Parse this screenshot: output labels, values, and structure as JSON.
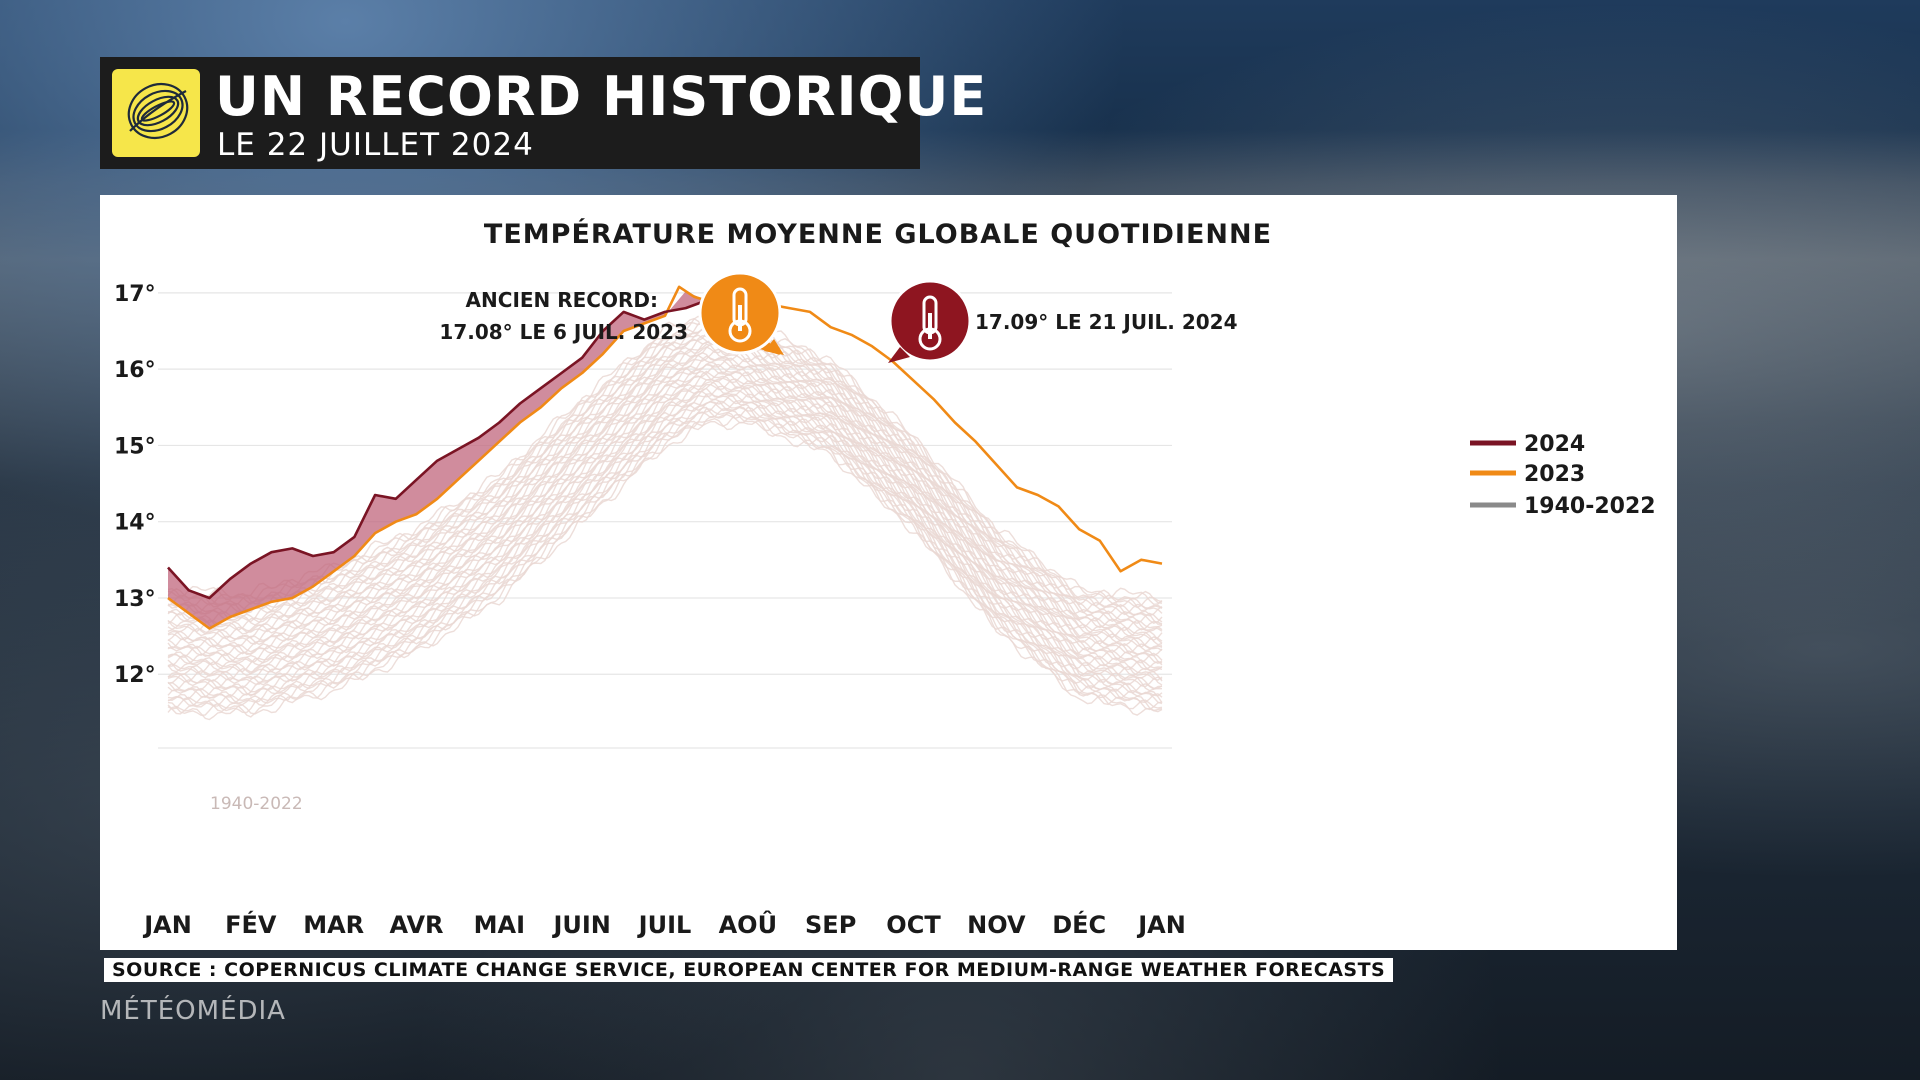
{
  "header": {
    "title": "UN RECORD HISTORIQUE",
    "subtitle": "LE 22 JUILLET 2024"
  },
  "colors": {
    "series_2024": "#7a1424",
    "series_2023": "#f08a16",
    "series_hist": "#ead8d4",
    "fill_2024": "#c0667c",
    "panel_bg": "#ffffff"
  },
  "icons": {
    "logo": "globe-swirl-icon",
    "old_record": "thermometer-icon",
    "new_record": "thermometer-icon"
  },
  "chart_data": {
    "type": "line",
    "title": "TEMPÉRATURE MOYENNE GLOBALE QUOTIDIENNE",
    "xlabel": "",
    "ylabel": "",
    "x_ticks": [
      "JAN",
      "FÉV",
      "MAR",
      "AVR",
      "MAI",
      "JUIN",
      "JUIL",
      "AOÛ",
      "SEP",
      "OCT",
      "NOV",
      "DÉC",
      "JAN"
    ],
    "y_ticks": [
      "12°",
      "13°",
      "14°",
      "15°",
      "16°",
      "17°"
    ],
    "y_tick_values": [
      12,
      13,
      14,
      15,
      16,
      17
    ],
    "ylim": [
      11.4,
      17.3
    ],
    "xlim_months": [
      0,
      12
    ],
    "grid": true,
    "legend_position": "right",
    "legend": [
      "2024",
      "2023",
      "1940-2022"
    ],
    "hist_label": "1940-2022",
    "series": [
      {
        "name": "2024",
        "x_months": [
          0,
          0.25,
          0.5,
          0.75,
          1,
          1.25,
          1.5,
          1.75,
          2,
          2.25,
          2.5,
          2.75,
          3,
          3.25,
          3.5,
          3.75,
          4,
          4.25,
          4.5,
          4.75,
          5,
          5.25,
          5.5,
          5.75,
          6,
          6.25,
          6.5,
          6.7
        ],
        "values": [
          13.4,
          13.1,
          13.0,
          13.25,
          13.45,
          13.6,
          13.65,
          13.55,
          13.6,
          13.8,
          14.35,
          14.3,
          14.55,
          14.8,
          14.95,
          15.1,
          15.3,
          15.55,
          15.75,
          15.95,
          16.15,
          16.5,
          16.75,
          16.65,
          16.75,
          16.8,
          16.9,
          17.09
        ]
      },
      {
        "name": "2023",
        "x_months": [
          0,
          0.25,
          0.5,
          0.75,
          1,
          1.25,
          1.5,
          1.75,
          2,
          2.25,
          2.5,
          2.75,
          3,
          3.25,
          3.5,
          3.75,
          4,
          4.25,
          4.5,
          4.75,
          5,
          5.25,
          5.5,
          5.75,
          6,
          6.17,
          6.35,
          6.5,
          6.75,
          7,
          7.25,
          7.5,
          7.75,
          8,
          8.25,
          8.5,
          8.75,
          9,
          9.25,
          9.5,
          9.75,
          10,
          10.25,
          10.5,
          10.75,
          11,
          11.25,
          11.5,
          11.75,
          12
        ],
        "values": [
          13.0,
          12.8,
          12.6,
          12.75,
          12.85,
          12.95,
          13.0,
          13.15,
          13.35,
          13.55,
          13.85,
          14.0,
          14.1,
          14.3,
          14.55,
          14.8,
          15.05,
          15.3,
          15.5,
          15.75,
          15.95,
          16.2,
          16.5,
          16.6,
          16.7,
          17.08,
          16.95,
          16.9,
          17.0,
          16.95,
          16.85,
          16.8,
          16.75,
          16.55,
          16.45,
          16.3,
          16.1,
          15.85,
          15.6,
          15.3,
          15.05,
          14.75,
          14.45,
          14.35,
          14.2,
          13.9,
          13.75,
          13.35,
          13.5,
          13.45
        ]
      },
      {
        "name": "1940-2022",
        "x_months": [
          0,
          1,
          2,
          3,
          4,
          5,
          6,
          6.5,
          7,
          8,
          9,
          10,
          11,
          12
        ],
        "band_low": [
          11.5,
          11.5,
          11.8,
          12.3,
          13.0,
          14.0,
          15.0,
          15.3,
          15.3,
          14.9,
          13.9,
          12.6,
          11.7,
          11.5
        ],
        "band_high": [
          13.1,
          13.05,
          13.4,
          13.9,
          14.6,
          15.6,
          16.5,
          16.7,
          16.6,
          16.1,
          15.1,
          13.9,
          13.1,
          13.0
        ]
      }
    ],
    "annotations": {
      "old_record_line1": "ANCIEN RECORD:",
      "old_record_line2": "17.08°  LE 6 JUIL. 2023",
      "new_record": "17.09°  LE 21 JUIL. 2024"
    }
  },
  "footer": {
    "source": "SOURCE : COPERNICUS CLIMATE CHANGE SERVICE, EUROPEAN CENTER FOR MEDIUM-RANGE WEATHER FORECASTS",
    "brand": "MÉTÉOMÉDIA"
  }
}
